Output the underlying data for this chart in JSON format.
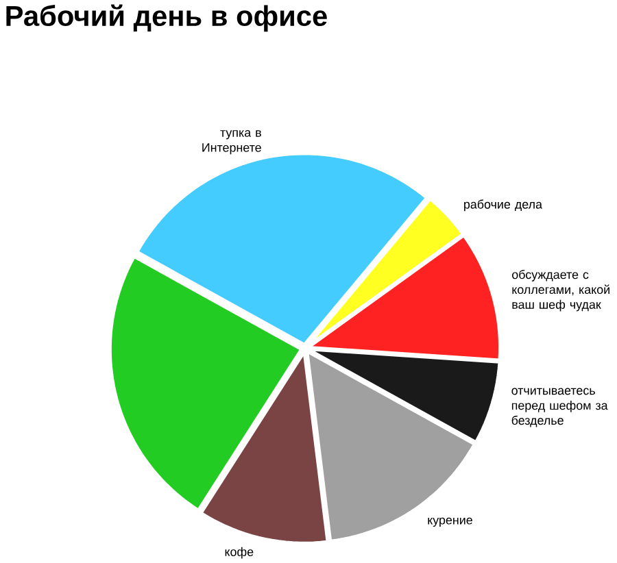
{
  "chart_data": {
    "type": "pie",
    "title": "Рабочий день в офисе",
    "categories": [
      "тупка в Интернете",
      "рабочие дела",
      "обсуждаете с коллегами, какой ваш шеф чудак",
      "отчитываетесь перед шефом за безделье",
      "курение",
      "кофе",
      null
    ],
    "values": [
      28,
      4,
      11,
      7,
      15,
      11,
      24
    ],
    "colors": [
      "#44ccff",
      "#ffff22",
      "#ff2222",
      "#1a1a1a",
      "#a0a0a0",
      "#7a4444",
      "#22cc22"
    ]
  }
}
